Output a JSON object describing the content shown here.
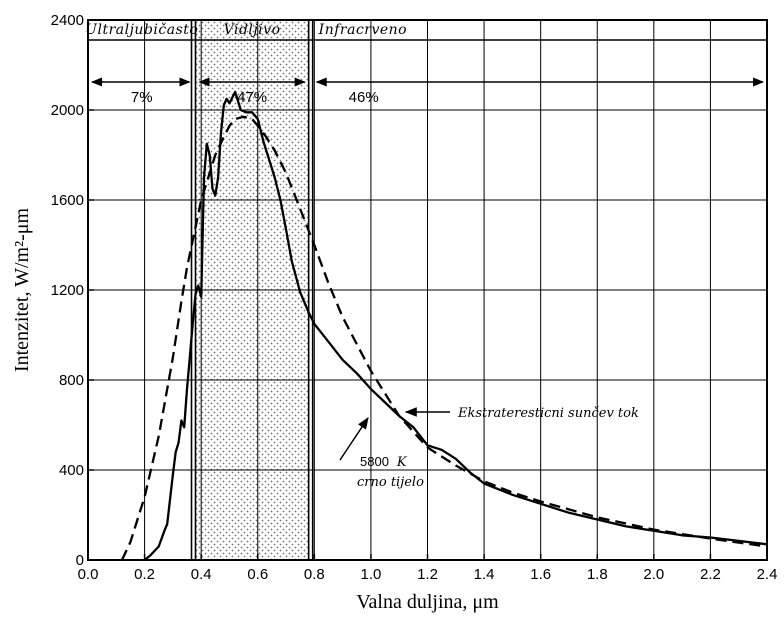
{
  "chart_data": {
    "type": "line",
    "xlabel": "Valna duljina, μm",
    "ylabel": "Intenzitet, W/m²-μm",
    "xlim": [
      0.0,
      2.4
    ],
    "ylim": [
      0,
      2400
    ],
    "x_ticks": [
      "0.0",
      "0.2",
      "0.4",
      "0.6",
      "0.8",
      "1.0",
      "1.2",
      "1.4",
      "1.6",
      "1.8",
      "2.0",
      "2.2",
      "2.4"
    ],
    "y_ticks": [
      "0",
      "400",
      "800",
      "1200",
      "1600",
      "2000",
      "2400"
    ],
    "grid": true,
    "regions": [
      {
        "name": "Ultraljubičasto",
        "x": [
          0.0,
          0.38
        ],
        "percent": "7%"
      },
      {
        "name": "Vidljivo",
        "x": [
          0.38,
          0.78
        ],
        "percent": "47%"
      },
      {
        "name": "Infracrveno",
        "x": [
          0.78,
          2.4
        ],
        "percent": "46%"
      }
    ],
    "annotations": {
      "solar": "Ekstrateresticni sunčev tok",
      "blackbody_temp": "5800",
      "blackbody_unit": "K",
      "blackbody_label": "crno tijelo"
    },
    "series": [
      {
        "style": "solid",
        "x": [
          0.2,
          0.22,
          0.25,
          0.27,
          0.28,
          0.3,
          0.31,
          0.32,
          0.33,
          0.34,
          0.35,
          0.36,
          0.37,
          0.38,
          0.39,
          0.4,
          0.41,
          0.42,
          0.43,
          0.44,
          0.45,
          0.46,
          0.47,
          0.48,
          0.49,
          0.5,
          0.52,
          0.54,
          0.56,
          0.58,
          0.6,
          0.62,
          0.64,
          0.66,
          0.68,
          0.7,
          0.72,
          0.75,
          0.78,
          0.8,
          0.85,
          0.9,
          0.95,
          1.0,
          1.05,
          1.1,
          1.15,
          1.2,
          1.25,
          1.3,
          1.35,
          1.4,
          1.5,
          1.6,
          1.7,
          1.8,
          1.9,
          2.0,
          2.1,
          2.2,
          2.3,
          2.4
        ],
        "y": [
          0,
          20,
          60,
          130,
          160,
          380,
          480,
          520,
          620,
          590,
          760,
          900,
          1050,
          1180,
          1220,
          1170,
          1700,
          1850,
          1800,
          1650,
          1620,
          1700,
          1900,
          2020,
          2050,
          2030,
          2080,
          2000,
          1990,
          1990,
          1960,
          1860,
          1780,
          1700,
          1600,
          1470,
          1330,
          1190,
          1100,
          1050,
          970,
          890,
          830,
          760,
          700,
          640,
          590,
          510,
          490,
          450,
          390,
          340,
          290,
          250,
          210,
          180,
          150,
          130,
          110,
          100,
          85,
          70
        ]
      },
      {
        "style": "dashed",
        "x": [
          0.12,
          0.15,
          0.2,
          0.25,
          0.3,
          0.33,
          0.35,
          0.37,
          0.4,
          0.43,
          0.45,
          0.48,
          0.5,
          0.52,
          0.55,
          0.58,
          0.6,
          0.63,
          0.66,
          0.7,
          0.75,
          0.8,
          0.85,
          0.9,
          1.0,
          1.1,
          1.2,
          1.3,
          1.4,
          1.5,
          1.6,
          1.8,
          2.0,
          2.2,
          2.4
        ],
        "y": [
          0,
          80,
          280,
          550,
          900,
          1150,
          1300,
          1420,
          1600,
          1720,
          1800,
          1880,
          1930,
          1960,
          1970,
          1960,
          1930,
          1880,
          1820,
          1720,
          1560,
          1400,
          1230,
          1080,
          840,
          640,
          500,
          420,
          350,
          300,
          260,
          190,
          135,
          95,
          60
        ]
      }
    ]
  }
}
